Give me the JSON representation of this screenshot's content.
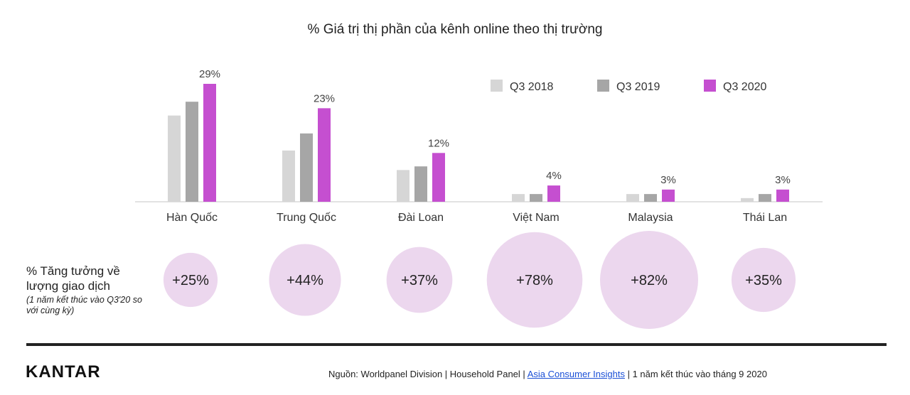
{
  "chart_data": {
    "type": "bar",
    "title": "% Giá trị thị phần của kênh online theo thị trường",
    "categories": [
      "Hàn Quốc",
      "Trung Quốc",
      "Đài Loan",
      "Việt Nam",
      "Malaysia",
      "Thái Lan"
    ],
    "series": [
      {
        "name": "Q3 2018",
        "color": "#d6d6d6",
        "values": [
          21.2,
          12.6,
          7.8,
          1.9,
          1.9,
          0.9
        ]
      },
      {
        "name": "Q3 2019",
        "color": "#a6a6a6",
        "values": [
          24.6,
          16.8,
          8.7,
          1.9,
          1.9,
          1.9
        ]
      },
      {
        "name": "Q3 2020",
        "color": "#c54fd0",
        "values": [
          29,
          23,
          12,
          4,
          3,
          3
        ]
      }
    ],
    "data_labels": [
      "29%",
      "23%",
      "12%",
      "4%",
      "3%",
      "3%"
    ],
    "ylim": [
      0,
      29
    ],
    "legend_position": "top-right",
    "growth": {
      "label": "% Tăng tưởng về lượng giao dịch",
      "sublabel": "(1 năm kết thúc vào Q3'20 so với cùng kỳ)",
      "values": [
        25,
        44,
        37,
        78,
        82,
        35
      ],
      "labels": [
        "+25%",
        "+44%",
        "+37%",
        "+78%",
        "+82%",
        "+35%"
      ],
      "color": "#ecd7ee"
    }
  },
  "footer": {
    "logo": "KANTAR",
    "source_prefix": "Nguồn: Worldpanel Division | Household Panel | ",
    "source_link": "Asia Consumer Insights",
    "source_suffix": " | 1 năm kết thúc vào tháng 9 2020"
  }
}
